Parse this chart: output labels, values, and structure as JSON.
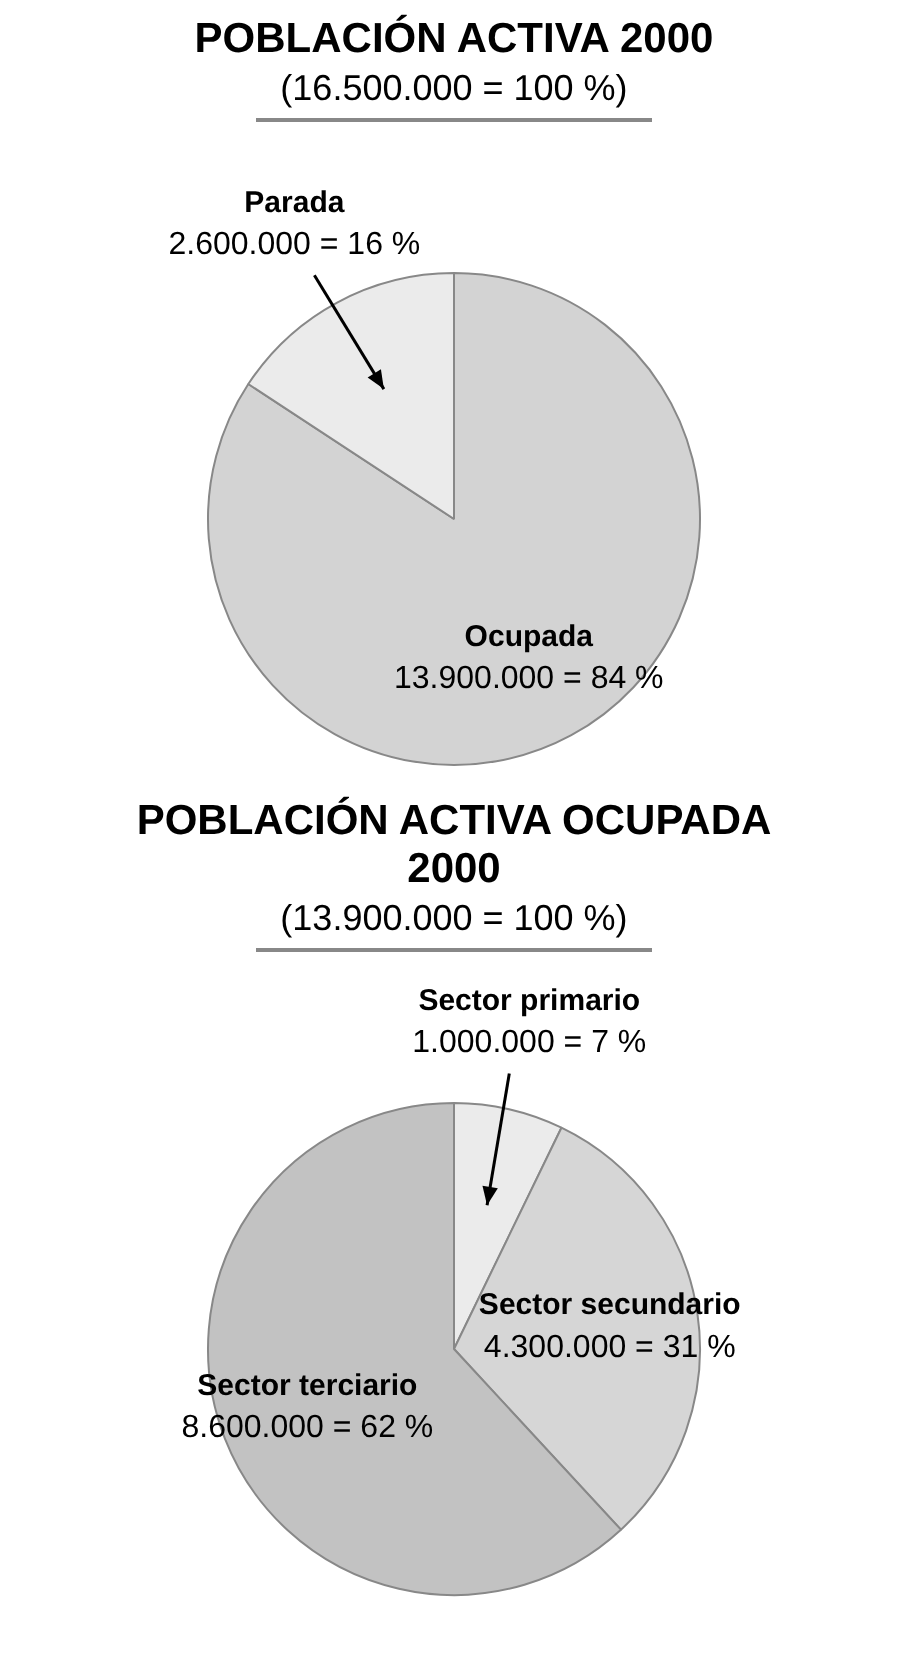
{
  "chart_data": [
    {
      "type": "pie",
      "title": "POBLACIÓN ACTIVA 2000",
      "subtitle": "(16.500.000 = 100 %)",
      "categories": [
        "Ocupada",
        "Parada"
      ],
      "values": [
        13900000,
        2600000
      ],
      "colors": [
        "#d3d3d3",
        "#ebebeb"
      ],
      "value_labels": [
        "13.900.000 = 84 %",
        "2.600.000 = 16 %"
      ]
    },
    {
      "type": "pie",
      "title": "POBLACIÓN ACTIVA OCUPADA 2000",
      "subtitle": "(13.900.000 = 100 %)",
      "categories": [
        "Sector primario",
        "Sector secundario",
        "Sector terciario"
      ],
      "values": [
        1000000,
        4300000,
        8600000
      ],
      "colors": [
        "#ebebeb",
        "#d6d6d6",
        "#c2c2c2"
      ],
      "value_labels": [
        "1.000.000 = 7 %",
        "4.300.000 = 31 %",
        "8.600.000 = 62 %"
      ]
    }
  ]
}
